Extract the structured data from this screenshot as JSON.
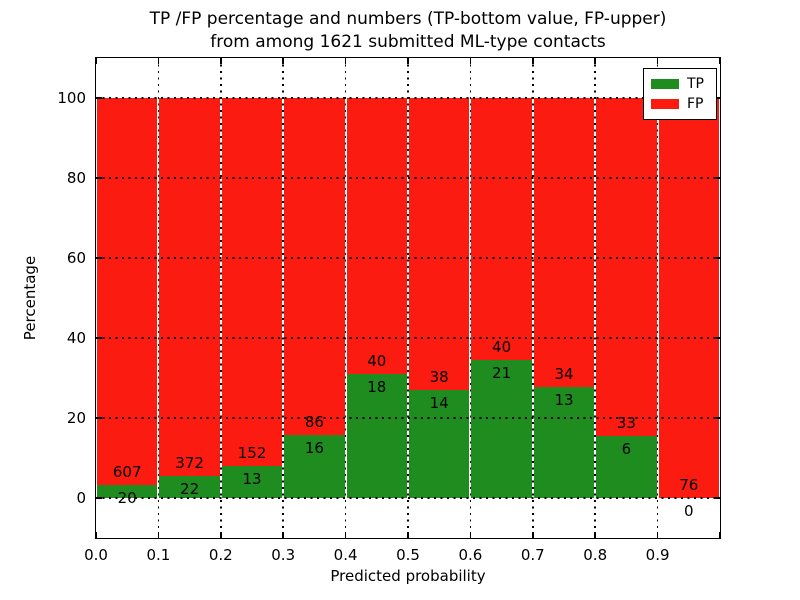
{
  "title": {
    "line1": "TP /FP percentage and numbers (TP-bottom value, FP-upper)",
    "line2": "from among 1621 submitted ML-type contacts"
  },
  "chart_data": {
    "type": "bar",
    "stacked": true,
    "normalized_to_percent": true,
    "total_contacts_shown_in_title": "1621",
    "bin_edges": [
      0.0,
      0.1,
      0.2,
      0.3,
      0.4,
      0.5,
      0.6,
      0.7,
      0.8,
      0.9,
      1.0
    ],
    "series": [
      {
        "name": "TP",
        "color": "#1e8c1e",
        "counts": [
          20,
          22,
          13,
          16,
          18,
          14,
          21,
          13,
          6,
          0
        ]
      },
      {
        "name": "FP",
        "color": "#fb1b11",
        "counts": [
          607,
          372,
          152,
          86,
          40,
          38,
          40,
          34,
          33,
          76
        ]
      }
    ],
    "tp_percent_heights": [
      3.19,
      5.58,
      7.88,
      15.69,
      31.03,
      26.92,
      34.43,
      27.66,
      15.38,
      0.0
    ],
    "annotation_rule": "TP count below green top, FP count above green top",
    "xlabel": "Predicted probability",
    "ylabel": "Percentage",
    "xlim": [
      0.0,
      1.0
    ],
    "ylim": [
      -10,
      110
    ],
    "xticks": [
      {
        "p": 0.0,
        "label": "0.0"
      },
      {
        "p": 0.1,
        "label": "0.1"
      },
      {
        "p": 0.2,
        "label": "0.2"
      },
      {
        "p": 0.3,
        "label": "0.3"
      },
      {
        "p": 0.4,
        "label": "0.4"
      },
      {
        "p": 0.5,
        "label": "0.5"
      },
      {
        "p": 0.6,
        "label": "0.6"
      },
      {
        "p": 0.7,
        "label": "0.7"
      },
      {
        "p": 0.8,
        "label": "0.8"
      },
      {
        "p": 0.9,
        "label": "0.9"
      },
      {
        "p": 1.0,
        "label": ""
      }
    ],
    "yticks": [
      {
        "v": 0,
        "label": "0"
      },
      {
        "v": 20,
        "label": "20"
      },
      {
        "v": 40,
        "label": "40"
      },
      {
        "v": 60,
        "label": "60"
      },
      {
        "v": 80,
        "label": "80"
      },
      {
        "v": 100,
        "label": "100"
      }
    ],
    "grid": {
      "style": "dotted",
      "color": "#000000",
      "vertical_at": [
        0.1,
        0.2,
        0.3,
        0.4,
        0.5,
        0.6,
        0.7,
        0.8,
        0.9
      ],
      "horizontal_at": [
        0,
        20,
        40,
        60,
        80,
        100
      ]
    },
    "legend": {
      "position": "upper right",
      "entries": [
        {
          "label": "TP",
          "color": "#1e8c1e"
        },
        {
          "label": "FP",
          "color": "#fb1b11"
        }
      ]
    }
  }
}
